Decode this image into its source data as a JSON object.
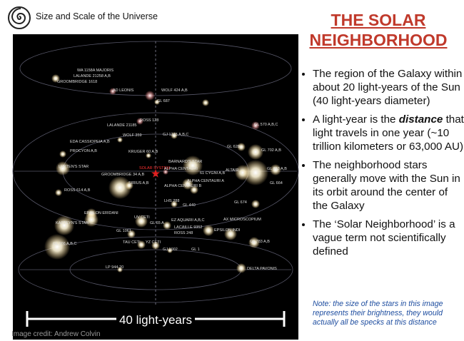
{
  "header": {
    "subtitle": "Size and Scale of the Universe"
  },
  "title": "THE SOLAR NEIGHBORHOOD",
  "bullets": [
    [
      "The region of the Galaxy within about 20 light-years of the Sun (40 light-years diameter)"
    ],
    [
      "A light-year is the ",
      "distance",
      " that light travels in one year (~10 trillion kilometers or 63,000 AU)"
    ],
    [
      "The neighborhood stars generally move with the Sun in its orbit around the center of the Galaxy"
    ],
    [
      "The ‘Solar Neighborhood’ is a vague term not scientifically defined"
    ]
  ],
  "note": "Note: the size of the stars in this image represents their brightness, they would actually all be specks at this distance",
  "image": {
    "star_labels": [
      "WA 1158A MAJORIS",
      "LALANDE 21258 A,B",
      "GROOMBRIDGE 1618",
      "AD LEONIS",
      "WOLF 424 A,B",
      "GL 687",
      "ROSS 128",
      "LALANDE 21185",
      "GL 570 A,B,C",
      "WOLF 359",
      "GJ 1245 A,B,C",
      "EDA CASSIOPEIA A,B",
      "GL 628",
      "GL 702 A,B",
      "PROCYON A,B",
      "KRUGER 60 A,B",
      "BARNARD'S STAR",
      "LUYTEN'S STAR",
      "SOLAR SYSTEM",
      "ALPHA CENTAURI",
      "61 CYGNI A,B",
      "ALTAIR",
      "GL 663 A,B",
      "GROOMBRIDGE 34 A,B",
      "SIRIUS A,B",
      "ALPHA CENTAURI A",
      "GL 664",
      "ALPHA CENTAURI B",
      "ROSS 614 A,B",
      "LHS 288",
      "GL 674",
      "GL 440",
      "EPSILON ERIDANI",
      "UV CETI",
      "EZ AQUARII A,B,C",
      "AX MICROSCOPIUM",
      "KAPTEYN'S STAR",
      "GL 65 A",
      "LACAILLE 9352",
      "ROSS 248",
      "EPSILON INDI",
      "GL 1061",
      "GL 166 A,B,C",
      "TAU CETI",
      "YZ CETI",
      "GJ 1002",
      "GL 1",
      "GL 783 A,B",
      "LP 944-20",
      "DELTA PAVONIS"
    ],
    "scale_label": "40 light-years",
    "credit": "Image credit: Andrew Colvin"
  }
}
